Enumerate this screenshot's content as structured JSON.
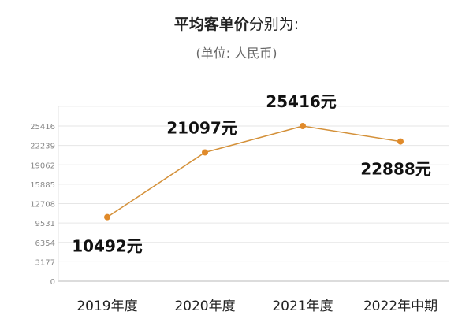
{
  "chart_data": {
    "type": "line",
    "title_bold": "平均客单价",
    "title_rest": "分别为:",
    "subtitle": "(单位:  人民币)",
    "categories": [
      "2019年度",
      "2020年度",
      "2021年度",
      "2022年中期"
    ],
    "series": [
      {
        "name": "平均客单价",
        "values": [
          10492,
          21097,
          25416,
          22888
        ]
      }
    ],
    "data_labels": [
      "10492元",
      "21097元",
      "25416元",
      "22888元"
    ],
    "y_ticks": [
      0,
      3177,
      6354,
      9531,
      12708,
      15885,
      19062,
      22239,
      25416
    ],
    "ylim": [
      0,
      25416
    ],
    "grid": true,
    "line_color": "#d4913a",
    "marker_color": "#e08a2a"
  }
}
